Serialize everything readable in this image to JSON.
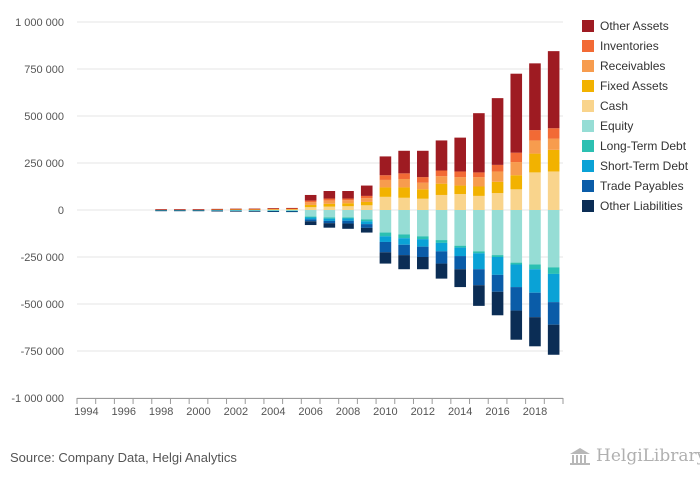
{
  "source": "Source: Company Data, Helgi Analytics",
  "logo_text": "HelgiLibrary",
  "chart_data": {
    "type": "bar",
    "stacked": true,
    "categories": [
      "1994",
      "1995",
      "1996",
      "1997",
      "1998",
      "1999",
      "2000",
      "2001",
      "2002",
      "2003",
      "2004",
      "2005",
      "2006",
      "2007",
      "2008",
      "2009",
      "2010",
      "2011",
      "2012",
      "2013",
      "2014",
      "2015",
      "2016",
      "2017",
      "2018",
      "2019"
    ],
    "x_tick_labels": [
      "1994",
      "1996",
      "1998",
      "2000",
      "2002",
      "2004",
      "2006",
      "2008",
      "2010",
      "2012",
      "2014",
      "2016",
      "2018"
    ],
    "ylim": [
      -1000000,
      1000000
    ],
    "y_ticks": [
      1000000,
      750000,
      500000,
      250000,
      0,
      -250000,
      -500000,
      -750000,
      -1000000
    ],
    "y_tick_labels": [
      "1 000 000",
      "750 000",
      "500 000",
      "250 000",
      "0",
      "-250 000",
      "-500 000",
      "-750 000",
      "-1 000 000"
    ],
    "grid": true,
    "legend_position": "right",
    "positive_series": [
      {
        "name": "Cash",
        "color": "#f9d48c",
        "values": [
          0,
          0,
          0,
          0,
          1000,
          1000,
          1000,
          1500,
          2000,
          2000,
          2500,
          3000,
          15000,
          18000,
          20000,
          25000,
          70000,
          65000,
          60000,
          80000,
          85000,
          75000,
          90000,
          110000,
          200000,
          205000
        ]
      },
      {
        "name": "Fixed Assets",
        "color": "#f2b200",
        "values": [
          0,
          0,
          0,
          0,
          1000,
          1000,
          1000,
          1000,
          1500,
          1500,
          2000,
          2000,
          12000,
          15000,
          16000,
          18000,
          50000,
          55000,
          50000,
          60000,
          45000,
          50000,
          60000,
          75000,
          100000,
          115000
        ]
      },
      {
        "name": "Receivables",
        "color": "#f79c4e",
        "values": [
          0,
          0,
          0,
          0,
          1000,
          1000,
          1000,
          1500,
          1500,
          1500,
          2000,
          2000,
          15000,
          18000,
          16000,
          20000,
          40000,
          45000,
          35000,
          40000,
          45000,
          50000,
          55000,
          70000,
          70000,
          60000
        ]
      },
      {
        "name": "Inventories",
        "color": "#f26a35",
        "values": [
          0,
          0,
          0,
          0,
          500,
          500,
          500,
          1000,
          1000,
          1000,
          1500,
          1500,
          8000,
          10000,
          9000,
          12000,
          25000,
          30000,
          30000,
          30000,
          30000,
          25000,
          35000,
          50000,
          55000,
          55000
        ]
      },
      {
        "name": "Other Assets",
        "color": "#9e1b22",
        "values": [
          0,
          0,
          0,
          0,
          500,
          500,
          500,
          1000,
          1000,
          1500,
          2000,
          2500,
          30000,
          40000,
          40000,
          55000,
          100000,
          120000,
          140000,
          160000,
          180000,
          315000,
          355000,
          420000,
          355000,
          410000
        ]
      }
    ],
    "negative_series": [
      {
        "name": "Equity",
        "color": "#96ddd5",
        "values": [
          0,
          0,
          0,
          0,
          -1500,
          -1500,
          -1500,
          -2000,
          -2500,
          -3000,
          -3500,
          -4000,
          -35000,
          -40000,
          -40000,
          -50000,
          -120000,
          -130000,
          -140000,
          -160000,
          -190000,
          -220000,
          -240000,
          -280000,
          -290000,
          -305000
        ]
      },
      {
        "name": "Long-Term Debt",
        "color": "#2cc0b2",
        "values": [
          0,
          0,
          0,
          0,
          -500,
          -500,
          -500,
          -500,
          -1000,
          -1000,
          -1000,
          -1000,
          -5000,
          -6000,
          -5000,
          -10000,
          -20000,
          -20000,
          -15000,
          -15000,
          -10000,
          -10000,
          -10000,
          -10000,
          -25000,
          -35000
        ]
      },
      {
        "name": "Short-Term Debt",
        "color": "#0aa2d6",
        "values": [
          0,
          0,
          0,
          0,
          -500,
          -500,
          -500,
          -1000,
          -1000,
          -1000,
          -1500,
          -1500,
          -10000,
          -12000,
          -12000,
          -15000,
          -30000,
          -35000,
          -40000,
          -45000,
          -45000,
          -85000,
          -95000,
          -120000,
          -125000,
          -150000
        ]
      },
      {
        "name": "Trade Payables",
        "color": "#0a5ca8",
        "values": [
          0,
          0,
          0,
          0,
          -500,
          -500,
          -500,
          -1000,
          -1000,
          -1000,
          -1500,
          -1500,
          -10000,
          -12000,
          -15000,
          -20000,
          -55000,
          -55000,
          -55000,
          -65000,
          -70000,
          -85000,
          -90000,
          -125000,
          -130000,
          -120000
        ]
      },
      {
        "name": "Other Liabilities",
        "color": "#0b2d55",
        "values": [
          0,
          0,
          0,
          0,
          -1000,
          -1000,
          -1000,
          -1500,
          -2000,
          -2000,
          -2500,
          -3000,
          -20000,
          -24000,
          -28000,
          -25000,
          -60000,
          -75000,
          -65000,
          -80000,
          -95000,
          -110000,
          -125000,
          -155000,
          -155000,
          -160000
        ]
      }
    ],
    "legend": [
      {
        "label": "Other Assets",
        "color": "#9e1b22"
      },
      {
        "label": "Inventories",
        "color": "#f26a35"
      },
      {
        "label": "Receivables",
        "color": "#f79c4e"
      },
      {
        "label": "Fixed Assets",
        "color": "#f2b200"
      },
      {
        "label": "Cash",
        "color": "#f9d48c"
      },
      {
        "label": "Equity",
        "color": "#96ddd5"
      },
      {
        "label": "Long-Term Debt",
        "color": "#2cc0b2"
      },
      {
        "label": "Short-Term Debt",
        "color": "#0aa2d6"
      },
      {
        "label": "Trade Payables",
        "color": "#0a5ca8"
      },
      {
        "label": "Other Liabilities",
        "color": "#0b2d55"
      }
    ]
  }
}
